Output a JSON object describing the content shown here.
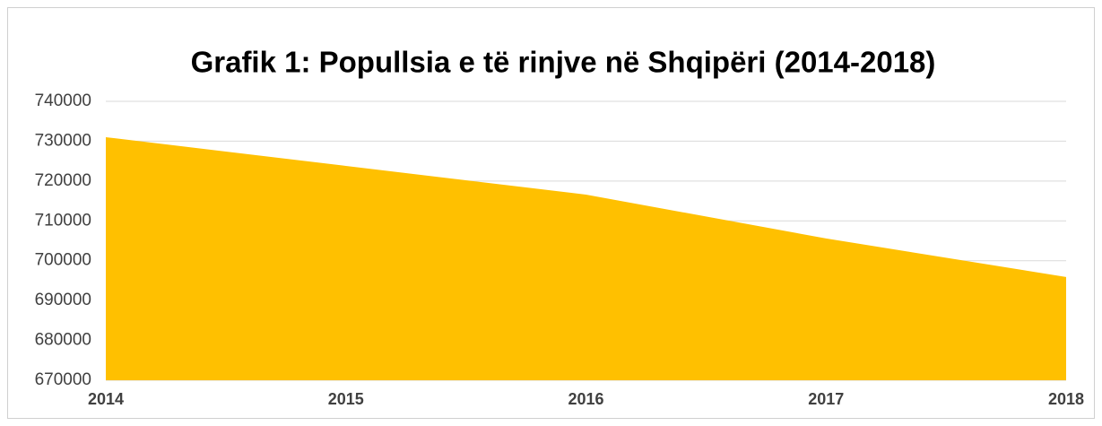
{
  "chart_data": {
    "type": "area",
    "title": "Grafik 1: Popullsia e të rinjve në Shqipëri (2014-2018)",
    "categories": [
      "2014",
      "2015",
      "2016",
      "2017",
      "2018"
    ],
    "values": [
      731000,
      723800,
      716600,
      705600,
      695900
    ],
    "color": "#ffc000",
    "ylim": [
      670000,
      740000
    ],
    "yticks": [
      670000,
      680000,
      690000,
      700000,
      710000,
      720000,
      730000,
      740000
    ],
    "grid": true
  }
}
